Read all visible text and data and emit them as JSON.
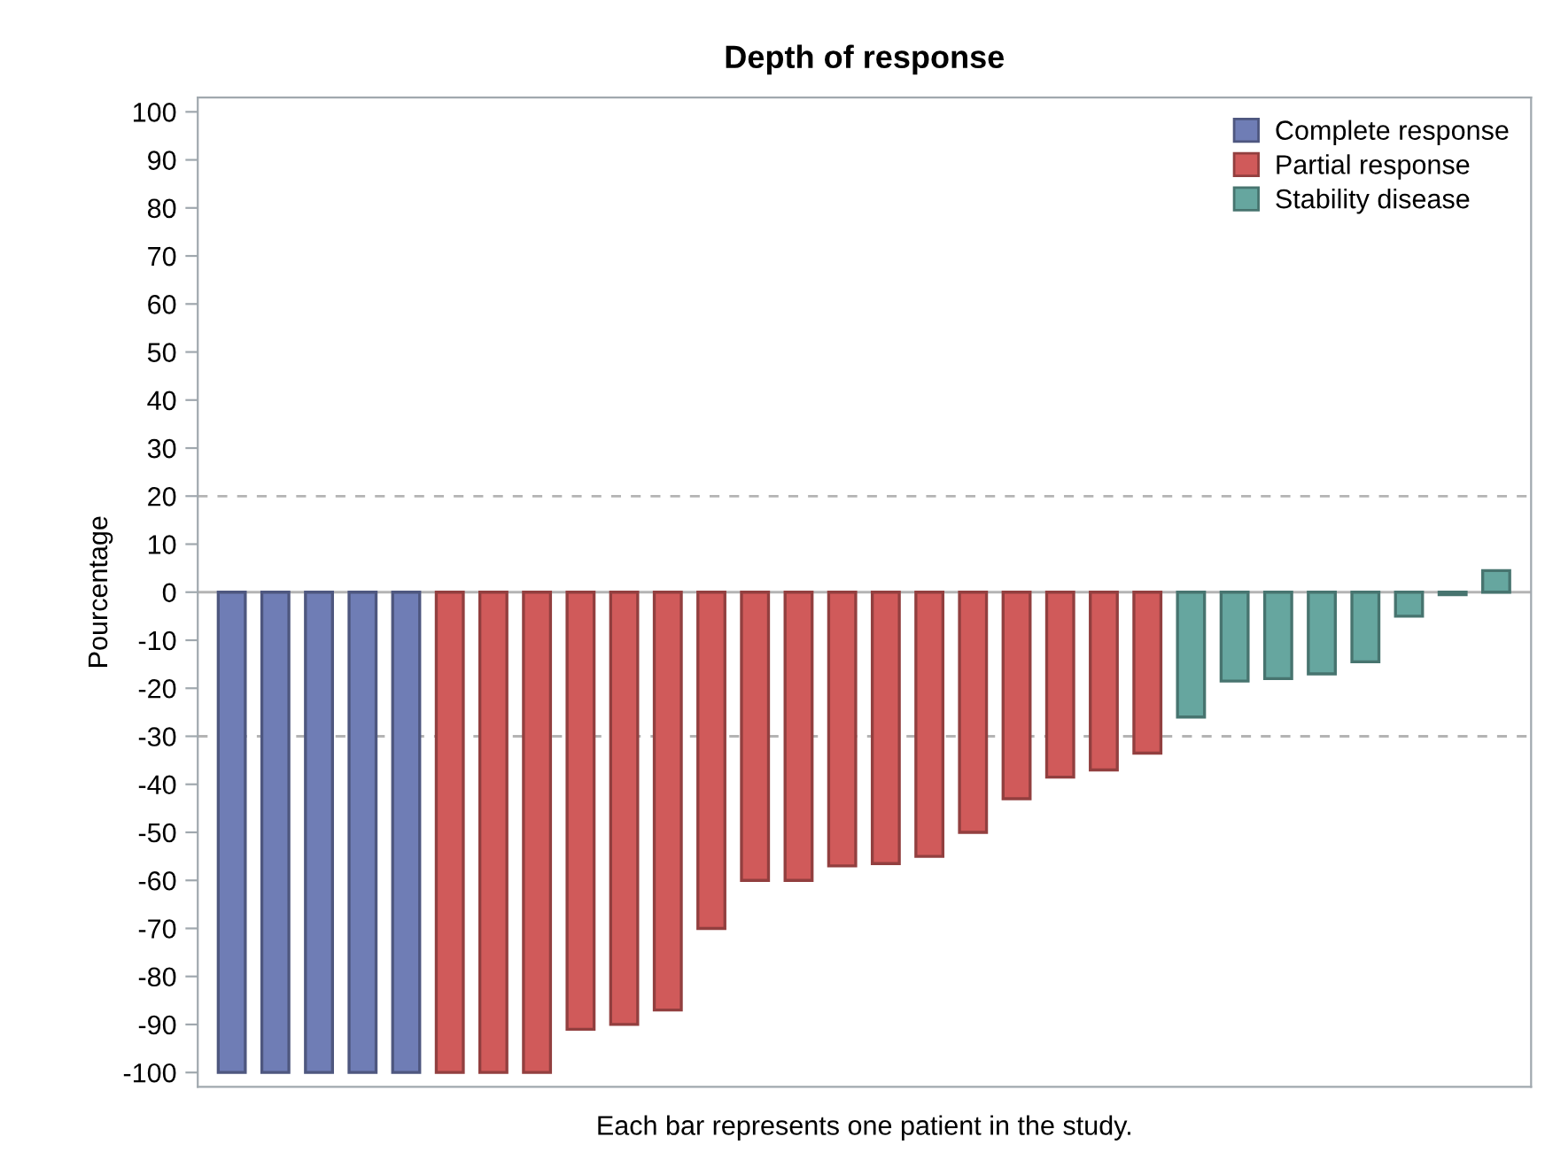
{
  "chart_data": {
    "type": "bar",
    "title": "Depth of response",
    "xlabel": "Each bar represents one patient in the study.",
    "ylabel": "Pourcentage",
    "categories": [
      null,
      null,
      null,
      null,
      null,
      null,
      null,
      null,
      null,
      null,
      null,
      null,
      null,
      null,
      null,
      null,
      null,
      null,
      null,
      null,
      null,
      null,
      null,
      null,
      null,
      null,
      null,
      null,
      null,
      null
    ],
    "series": [
      {
        "name": "Complete response",
        "color": "#6f7db5",
        "values": [
          -100,
          -100,
          -100,
          -100,
          -100,
          null,
          null,
          null,
          null,
          null,
          null,
          null,
          null,
          null,
          null,
          null,
          null,
          null,
          null,
          null,
          null,
          null,
          null,
          null,
          null,
          null,
          null,
          null,
          null,
          null
        ]
      },
      {
        "name": "Partial response",
        "color": "#d05a5a",
        "values": [
          null,
          null,
          null,
          null,
          null,
          -100,
          -100,
          -100,
          -91,
          -90,
          -87,
          -70,
          -60,
          -60,
          -57,
          -56.5,
          -55,
          -50,
          -43,
          -38.5,
          -37,
          -33.5,
          null,
          null,
          null,
          null,
          null,
          null,
          null,
          null
        ]
      },
      {
        "name": "Stability disease",
        "color": "#66a69f",
        "values": [
          null,
          null,
          null,
          null,
          null,
          null,
          null,
          null,
          null,
          null,
          null,
          null,
          null,
          null,
          null,
          null,
          null,
          null,
          null,
          null,
          null,
          null,
          -26,
          -18.5,
          -18,
          -17,
          -14.5,
          -5,
          -0.5,
          4.5
        ]
      }
    ],
    "ylim": [
      -103,
      103
    ],
    "yticks": [
      -100,
      -90,
      -80,
      -70,
      -60,
      -50,
      -40,
      -30,
      -20,
      -10,
      0,
      10,
      20,
      30,
      40,
      50,
      60,
      70,
      80,
      90,
      100
    ],
    "ref_lines": [
      {
        "axis": "y",
        "value": 20,
        "line_style": "dashed",
        "color": "#b4b4b4"
      },
      {
        "axis": "y",
        "value": -30,
        "line_style": "dashed",
        "color": "#b4b4b4"
      },
      {
        "axis": "y",
        "value": 0,
        "line_style": "solid",
        "color": "#b4b4b4"
      }
    ],
    "legend": "top right",
    "grid": false
  }
}
